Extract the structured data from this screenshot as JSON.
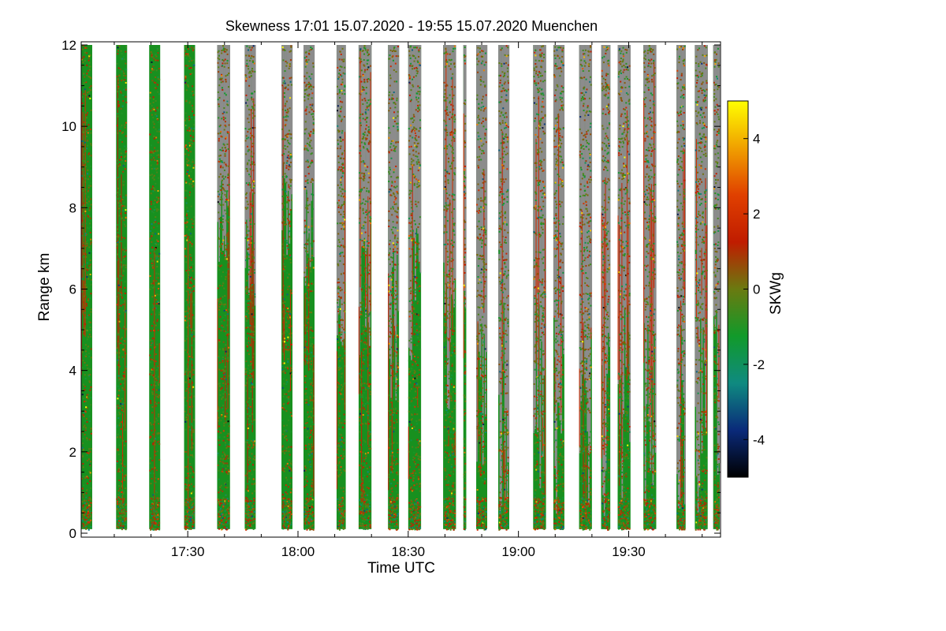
{
  "chart_data": {
    "type": "heatmap",
    "title": "Skewness   17:01 15.07.2020 - 19:55 15.07.2020 Muenchen",
    "xlabel": "Time UTC",
    "ylabel": "Range km",
    "xlim_minutes_utc": [
      1021,
      1195
    ],
    "ylim": [
      0,
      12
    ],
    "x_ticks": [
      {
        "label": "17:30",
        "minutes": 1050
      },
      {
        "label": "18:00",
        "minutes": 1080
      },
      {
        "label": "18:30",
        "minutes": 1110
      },
      {
        "label": "19:00",
        "minutes": 1140
      },
      {
        "label": "19:30",
        "minutes": 1170
      }
    ],
    "y_ticks": [
      0,
      2,
      4,
      6,
      8,
      10,
      12
    ],
    "colorbar": {
      "label": "SKWg",
      "range": [
        -5,
        5
      ],
      "ticks": [
        -4,
        -2,
        0,
        2,
        4
      ],
      "colors": [
        "#000000",
        "#0a2a7a",
        "#0f8a80",
        "#119a2a",
        "#6a7a10",
        "#c01c00",
        "#e04000",
        "#f0a000",
        "#ffff00"
      ]
    },
    "no_signal_color": "#8c8c8c",
    "scan_segments_minutes": [
      [
        1021.0,
        1024.0
      ],
      [
        1030.5,
        1033.5
      ],
      [
        1039.5,
        1042.5
      ],
      [
        1049.0,
        1052.0
      ],
      [
        1058.0,
        1061.5
      ],
      [
        1065.5,
        1068.5
      ],
      [
        1075.5,
        1078.5
      ],
      [
        1081.5,
        1084.5
      ],
      [
        1090.5,
        1093.0
      ],
      [
        1096.5,
        1100.0
      ],
      [
        1104.5,
        1107.5
      ],
      [
        1110.0,
        1113.5
      ],
      [
        1119.5,
        1123.0
      ],
      [
        1125.0,
        1125.8
      ],
      [
        1128.5,
        1131.5
      ],
      [
        1134.5,
        1137.5
      ],
      [
        1144.0,
        1147.5
      ],
      [
        1149.5,
        1152.5
      ],
      [
        1156.5,
        1160.0
      ],
      [
        1162.5,
        1165.0
      ],
      [
        1167.0,
        1170.5
      ],
      [
        1174.0,
        1177.5
      ],
      [
        1183.0,
        1185.5
      ],
      [
        1188.0,
        1191.5
      ],
      [
        1193.0,
        1195.0
      ]
    ],
    "min_range_km": 0.1,
    "max_range_km": 12.0
  }
}
